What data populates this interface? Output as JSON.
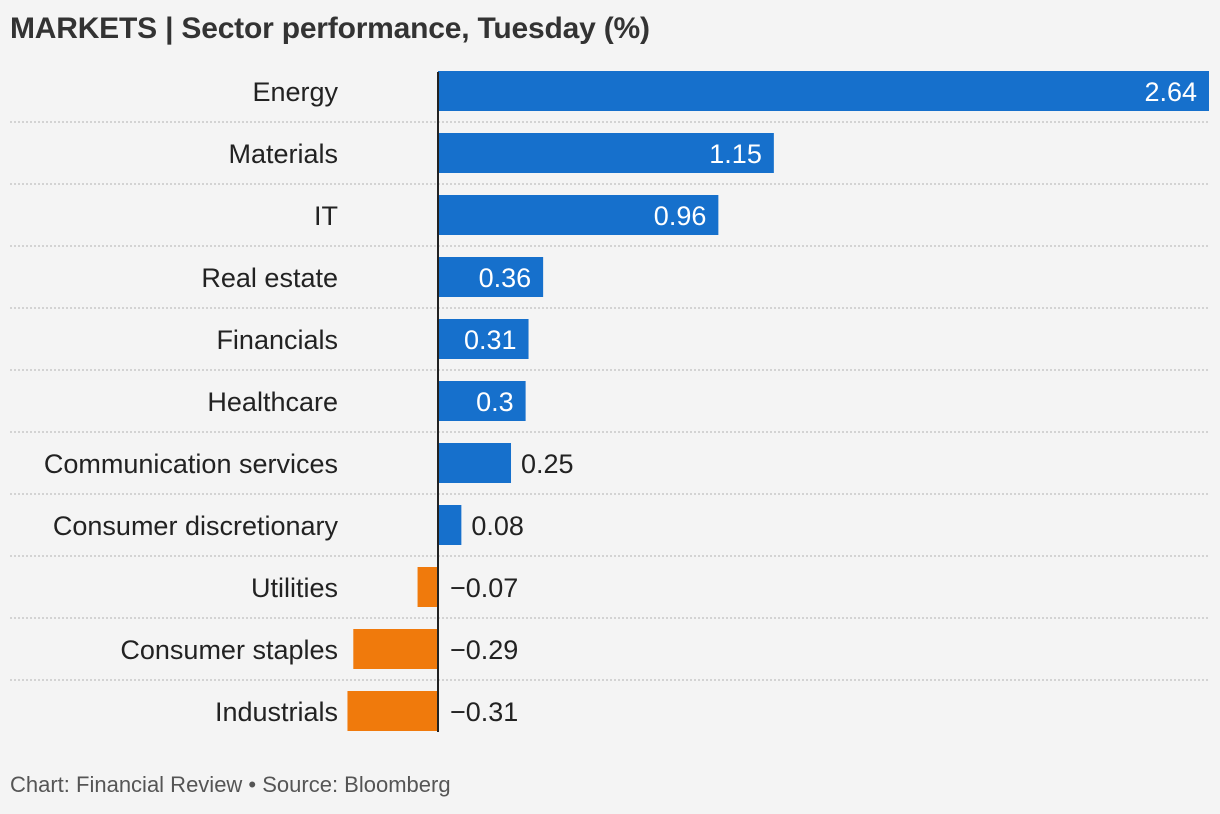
{
  "title": "MARKETS | Sector performance, Tuesday (%)",
  "footer": "Chart: Financial Review • Source: Bloomberg",
  "colors": {
    "positive": "#1670cc",
    "negative": "#f07a0c",
    "background": "#f4f4f4",
    "gridline": "#c8c8c8",
    "axis": "#222222"
  },
  "chart_data": {
    "type": "bar",
    "orientation": "horizontal",
    "title": "MARKETS | Sector performance, Tuesday (%)",
    "categories": [
      "Energy",
      "Materials",
      "IT",
      "Real estate",
      "Financials",
      "Healthcare",
      "Communication services",
      "Consumer discretionary",
      "Utilities",
      "Consumer staples",
      "Industrials"
    ],
    "values": [
      2.64,
      1.15,
      0.96,
      0.36,
      0.31,
      0.3,
      0.25,
      0.08,
      -0.07,
      -0.29,
      -0.31
    ],
    "value_labels": [
      "2.64",
      "1.15",
      "0.96",
      "0.36",
      "0.31",
      "0.3",
      "0.25",
      "0.08",
      "−0.07",
      "−0.29",
      "−0.31"
    ],
    "xlim": [
      -0.31,
      2.64
    ],
    "grid": true,
    "legend": "none"
  }
}
